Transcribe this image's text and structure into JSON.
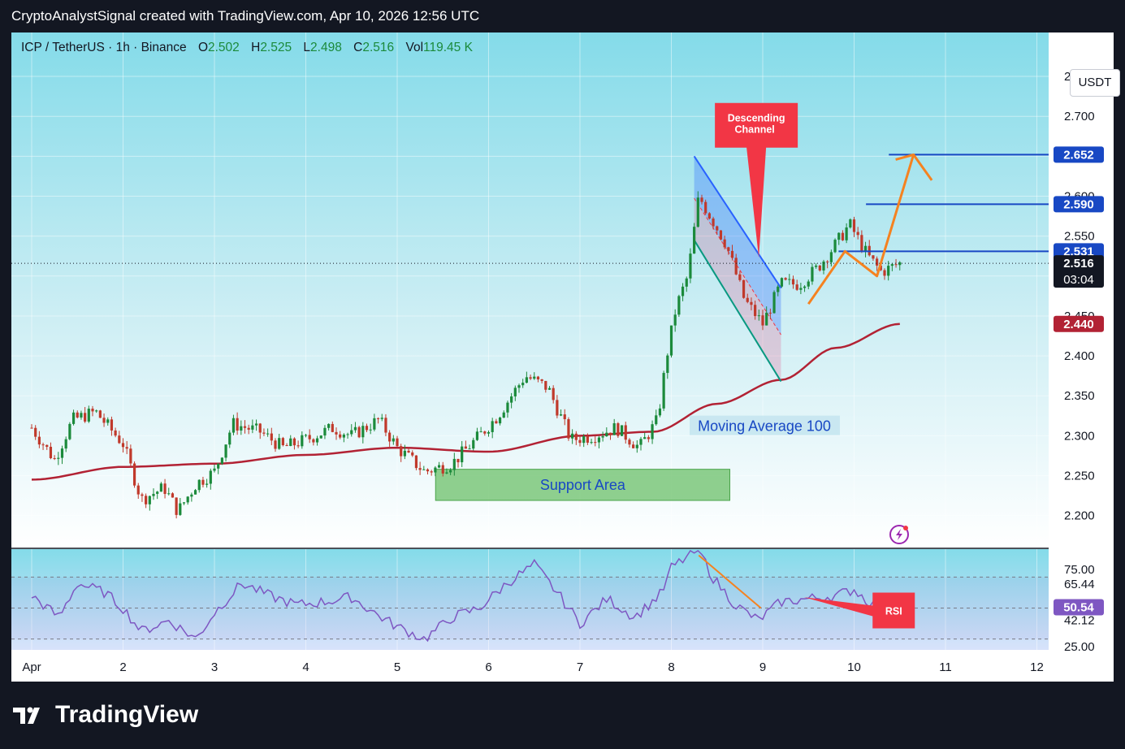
{
  "attribution": "CryptoAnalystSignal created with TradingView.com, Apr 10, 2026 12:56 UTC",
  "legend": {
    "symbol": "ICP / TetherUS · 1h · Binance",
    "open_label": "O",
    "open": "2.502",
    "high_label": "H",
    "high": "2.525",
    "low_label": "L",
    "low": "2.498",
    "close_label": "C",
    "close": "2.516",
    "vol_label": "Vol",
    "vol": "119.45 K"
  },
  "currency_button": "USDT",
  "footer_logo": "TradingView",
  "colors": {
    "bullish": "#1b8a3b",
    "bearish": "#c0392b",
    "ma": "#b22234",
    "levels": "#1848c4",
    "projection": "#f58220",
    "rsi_line": "#7e57c2",
    "support": "#6cc06a",
    "callout": "#f23645"
  },
  "chart_data": [
    {
      "type": "candlestick",
      "title": "ICP / TetherUS · 1h · Binance",
      "x_ticks": [
        "Apr",
        "2",
        "3",
        "4",
        "5",
        "6",
        "7",
        "8",
        "9",
        "10",
        "11",
        "12"
      ],
      "x_tick_days": [
        1,
        2,
        3,
        4,
        5,
        6,
        7,
        8,
        9,
        10,
        11,
        12
      ],
      "ylim": [
        2.16,
        2.805
      ],
      "y_ticks": [
        2.2,
        2.25,
        2.3,
        2.35,
        2.4,
        2.45,
        2.5,
        2.55,
        2.6,
        2.65,
        2.7,
        2.75
      ],
      "y_tick_labels": [
        "2.200",
        "2.250",
        "2.300",
        "2.350",
        "2.400",
        "2.450",
        "2.500",
        "2.550",
        "2.600",
        "2.650",
        "2.700",
        "2.750"
      ],
      "last_price": {
        "value": 2.516,
        "label": "2.516",
        "countdown": "03:04"
      },
      "price_levels": [
        {
          "value": 2.652,
          "label": "2.652",
          "from_day": 10.38
        },
        {
          "value": 2.59,
          "label": "2.590",
          "from_day": 10.13
        },
        {
          "value": 2.531,
          "label": "2.531",
          "from_day": 9.83
        }
      ],
      "ma_label_value": {
        "value": 2.44,
        "label": "2.440"
      },
      "price_path": [
        {
          "day": 1.0,
          "close": 2.31
        },
        {
          "day": 1.25,
          "close": 2.27
        },
        {
          "day": 1.45,
          "close": 2.32
        },
        {
          "day": 1.7,
          "close": 2.33
        },
        {
          "day": 2.0,
          "close": 2.29
        },
        {
          "day": 2.2,
          "close": 2.22
        },
        {
          "day": 2.45,
          "close": 2.235
        },
        {
          "day": 2.6,
          "close": 2.205
        },
        {
          "day": 2.8,
          "close": 2.24
        },
        {
          "day": 3.0,
          "close": 2.255
        },
        {
          "day": 3.2,
          "close": 2.315
        },
        {
          "day": 3.5,
          "close": 2.305
        },
        {
          "day": 3.75,
          "close": 2.285
        },
        {
          "day": 4.0,
          "close": 2.295
        },
        {
          "day": 4.3,
          "close": 2.31
        },
        {
          "day": 4.5,
          "close": 2.3
        },
        {
          "day": 4.8,
          "close": 2.32
        },
        {
          "day": 5.0,
          "close": 2.285
        },
        {
          "day": 5.3,
          "close": 2.255
        },
        {
          "day": 5.6,
          "close": 2.265
        },
        {
          "day": 5.9,
          "close": 2.3
        },
        {
          "day": 6.1,
          "close": 2.325
        },
        {
          "day": 6.4,
          "close": 2.375
        },
        {
          "day": 6.65,
          "close": 2.36
        },
        {
          "day": 6.9,
          "close": 2.295
        },
        {
          "day": 7.15,
          "close": 2.3
        },
        {
          "day": 7.4,
          "close": 2.31
        },
        {
          "day": 7.65,
          "close": 2.285
        },
        {
          "day": 7.85,
          "close": 2.32
        },
        {
          "day": 7.95,
          "close": 2.4
        },
        {
          "day": 8.05,
          "close": 2.46
        },
        {
          "day": 8.18,
          "close": 2.5
        },
        {
          "day": 8.3,
          "close": 2.6
        },
        {
          "day": 8.45,
          "close": 2.57
        },
        {
          "day": 8.6,
          "close": 2.54
        },
        {
          "day": 8.8,
          "close": 2.47
        },
        {
          "day": 9.0,
          "close": 2.44
        },
        {
          "day": 9.2,
          "close": 2.49
        },
        {
          "day": 9.4,
          "close": 2.49
        },
        {
          "day": 9.6,
          "close": 2.51
        },
        {
          "day": 9.8,
          "close": 2.54
        },
        {
          "day": 9.95,
          "close": 2.565
        },
        {
          "day": 10.15,
          "close": 2.525
        },
        {
          "day": 10.3,
          "close": 2.505
        },
        {
          "day": 10.5,
          "close": 2.516
        }
      ],
      "moving_average": {
        "name": "Moving Average 100",
        "points": [
          {
            "day": 1.0,
            "value": 2.245
          },
          {
            "day": 2.0,
            "value": 2.261
          },
          {
            "day": 3.0,
            "value": 2.265
          },
          {
            "day": 4.0,
            "value": 2.276
          },
          {
            "day": 5.0,
            "value": 2.285
          },
          {
            "day": 6.0,
            "value": 2.28
          },
          {
            "day": 7.0,
            "value": 2.3
          },
          {
            "day": 7.8,
            "value": 2.305
          },
          {
            "day": 8.5,
            "value": 2.34
          },
          {
            "day": 9.2,
            "value": 2.37
          },
          {
            "day": 9.8,
            "value": 2.41
          },
          {
            "day": 10.5,
            "value": 2.44
          }
        ]
      },
      "descending_channel": {
        "upper": [
          {
            "day": 8.25,
            "value": 2.65
          },
          {
            "day": 9.2,
            "value": 2.485
          }
        ],
        "lower": [
          {
            "day": 8.25,
            "value": 2.545
          },
          {
            "day": 9.2,
            "value": 2.368
          }
        ]
      },
      "projection_path": [
        {
          "day": 9.5,
          "value": 2.465
        },
        {
          "day": 9.9,
          "value": 2.531
        },
        {
          "day": 10.25,
          "value": 2.5
        },
        {
          "day": 10.65,
          "value": 2.652
        },
        {
          "day": 10.85,
          "value": 2.62
        }
      ],
      "support_area": {
        "label": "Support Area",
        "from_day": 5.42,
        "to_day": 8.64,
        "low": 2.219,
        "high": 2.258
      },
      "annotations": [
        {
          "text": "Descending Channel",
          "day": 8.93,
          "value": 2.67
        },
        {
          "text": "Moving Average 100",
          "day": 9.0,
          "value": 2.313
        }
      ]
    },
    {
      "type": "line",
      "title": "RSI",
      "ylim": [
        23,
        88
      ],
      "y_ticks": [
        75,
        65.44,
        50.54,
        42.12,
        25
      ],
      "y_tick_labels": [
        "75.00",
        "65.44",
        "50.54",
        "42.12",
        "25.00"
      ],
      "band": [
        30,
        70
      ],
      "current": {
        "value": 50.54,
        "label": "50.54"
      },
      "series": [
        {
          "values_days": [
            1.0,
            1.3,
            1.5,
            1.8,
            2.0,
            2.2,
            2.5,
            2.8,
            3.0,
            3.3,
            3.6,
            3.9,
            4.2,
            4.5,
            4.8,
            5.0,
            5.3,
            5.6,
            5.9,
            6.2,
            6.5,
            6.75,
            7.0,
            7.3,
            7.6,
            7.9,
            8.0,
            8.3,
            8.45,
            8.7,
            8.95,
            9.2,
            9.5,
            9.8,
            10.0,
            10.2,
            10.45
          ],
          "values": [
            58,
            44,
            66,
            60,
            50,
            35,
            42,
            30,
            47,
            66,
            58,
            52,
            54,
            57,
            45,
            38,
            30,
            44,
            50,
            66,
            78,
            60,
            40,
            56,
            44,
            60,
            76,
            88,
            70,
            52,
            42,
            54,
            56,
            58,
            62,
            52,
            50
          ]
        }
      ],
      "divergence_line": [
        {
          "day": 8.3,
          "value": 84
        },
        {
          "day": 8.98,
          "value": 50
        }
      ],
      "label": "RSI"
    }
  ]
}
